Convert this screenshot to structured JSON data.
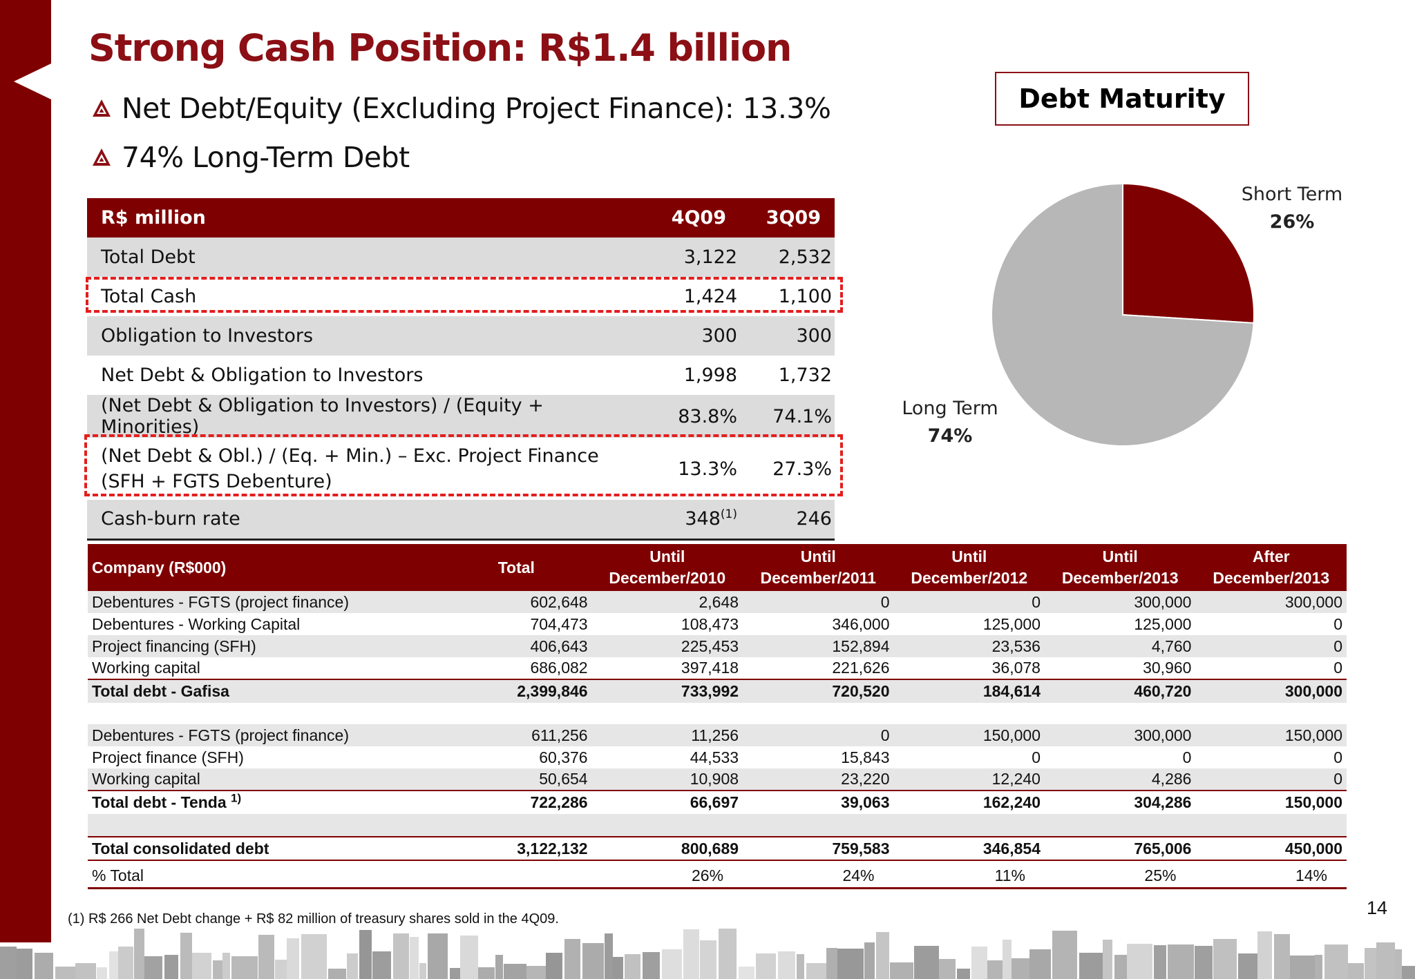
{
  "slide": {
    "title": "Strong Cash Position: R$1.4 billion",
    "bullets": [
      "Net Debt/Equity (Excluding Project Finance): 13.3%",
      "74% Long-Term Debt"
    ],
    "page_number": "14",
    "footnote": "(1) R$ 266 Net Debt change + R$ 82 million  of treasury shares  sold  in  the 4Q09.",
    "colors": {
      "brand": "#7f0000",
      "highlight": "#e41e1e",
      "pie_long": "#b7b7b7",
      "pie_short": "#7f0000"
    },
    "icons": {
      "bullet": "triangle-logo-icon"
    }
  },
  "summary_table": {
    "headers": [
      "R$ million",
      "4Q09",
      "3Q09"
    ],
    "rows": [
      {
        "label": "Total Debt",
        "q4": "3,122",
        "q3": "2,532"
      },
      {
        "label": "Total Cash",
        "q4": "1,424",
        "q3": "1,100",
        "highlighted": true
      },
      {
        "label": "Obligation to Investors",
        "q4": "300",
        "q3": "300"
      },
      {
        "label": "Net Debt & Obligation to Investors",
        "q4": "1,998",
        "q3": "1,732"
      },
      {
        "label": "(Net Debt & Obligation to Investors) / (Equity + Minorities)",
        "q4": "83.8%",
        "q3": "74.1%"
      },
      {
        "label": "(Net Debt & Obl.) / (Eq. + Min.) – Exc. Project Finance (SFH + FGTS Debenture)",
        "q4": "13.3%",
        "q3": "27.3%",
        "highlighted": true
      },
      {
        "label": "Cash-burn rate",
        "q4": "348",
        "q4_note": "(1)",
        "q3": "246"
      }
    ]
  },
  "maturity": {
    "box_title": "Debt Maturity",
    "labels": {
      "short_name": "Short Term",
      "short_value": "26%",
      "long_name": "Long Term",
      "long_value": "74%"
    }
  },
  "chart_data": {
    "type": "pie",
    "title": "Debt Maturity",
    "slices": [
      {
        "label": "Short Term",
        "value": 26
      },
      {
        "label": "Long Term",
        "value": 74
      }
    ]
  },
  "detail_table": {
    "headers": [
      {
        "line1": "Company (R$000)",
        "line2": ""
      },
      {
        "line1": "Total",
        "line2": ""
      },
      {
        "line1": "Until",
        "line2": "December/2010"
      },
      {
        "line1": "Until",
        "line2": "December/2011"
      },
      {
        "line1": "Until",
        "line2": "December/2012"
      },
      {
        "line1": "Until",
        "line2": "December/2013"
      },
      {
        "line1": "After",
        "line2": "December/2013"
      }
    ],
    "rows": [
      {
        "cells": [
          "Debentures - FGTS (project finance)",
          "602,648",
          "2,648",
          "0",
          "0",
          "300,000",
          "300,000"
        ]
      },
      {
        "cells": [
          "Debentures - Working Capital",
          "704,473",
          "108,473",
          "346,000",
          "125,000",
          "125,000",
          "0"
        ]
      },
      {
        "cells": [
          "Project financing (SFH)",
          "406,643",
          "225,453",
          "152,894",
          "23,536",
          "4,760",
          "0"
        ]
      },
      {
        "cells": [
          "Working capital",
          "686,082",
          "397,418",
          "221,626",
          "36,078",
          "30,960",
          "0"
        ]
      },
      {
        "cells": [
          "Total debt - Gafisa",
          "2,399,846",
          "733,992",
          "720,520",
          "184,614",
          "460,720",
          "300,000"
        ]
      },
      {
        "cells": [
          "",
          "",
          "",
          "",
          "",
          "",
          ""
        ]
      },
      {
        "cells": [
          "Debentures - FGTS (project finance)",
          "611,256",
          "11,256",
          "0",
          "150,000",
          "300,000",
          "150,000"
        ]
      },
      {
        "cells": [
          "Project finance (SFH)",
          "60,376",
          "44,533",
          "15,843",
          "0",
          "0",
          "0"
        ]
      },
      {
        "cells": [
          "Working capital",
          "50,654",
          "10,908",
          "23,220",
          "12,240",
          "4,286",
          "0"
        ]
      },
      {
        "cells": [
          "Total debt - Tenda ",
          "722,286",
          "66,697",
          "39,063",
          "162,240",
          "304,286",
          "150,000"
        ],
        "note": "1)"
      },
      {
        "cells": [
          "",
          "",
          "",
          "",
          "",
          "",
          ""
        ]
      },
      {
        "cells": [
          "Total consolidated debt",
          "3,122,132",
          "800,689",
          "759,583",
          "346,854",
          "765,006",
          "450,000"
        ]
      },
      {
        "cells": [
          "% Total",
          "",
          "26%",
          "24%",
          "11%",
          "25%",
          "14%"
        ]
      }
    ]
  }
}
